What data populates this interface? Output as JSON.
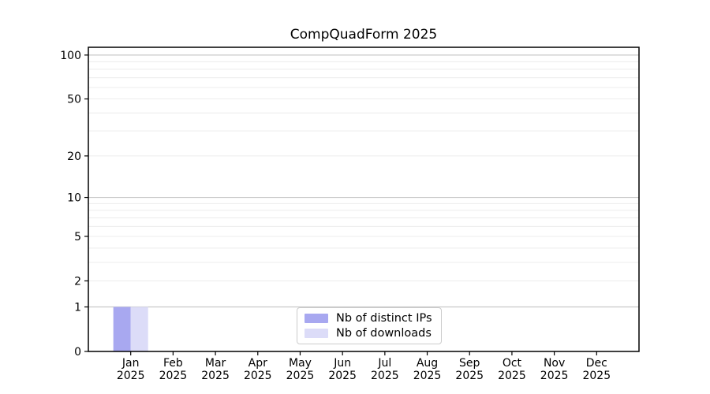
{
  "chart_data": {
    "type": "bar",
    "title": "CompQuadForm 2025",
    "yscale": "log1p",
    "ylim": [
      0,
      113
    ],
    "yticks": [
      0,
      1,
      2,
      5,
      10,
      20,
      50,
      100
    ],
    "major_gridlines": [
      1,
      10,
      100
    ],
    "minor_gridlines": [
      2,
      3,
      4,
      5,
      6,
      7,
      8,
      9,
      20,
      30,
      40,
      50,
      60,
      70,
      80,
      90
    ],
    "categories": [
      "Jan",
      "Feb",
      "Mar",
      "Apr",
      "May",
      "Jun",
      "Jul",
      "Aug",
      "Sep",
      "Oct",
      "Nov",
      "Dec"
    ],
    "x_tick_second_line": "2025",
    "series": [
      {
        "name": "Nb of distinct IPs",
        "color": "#a8a8f0",
        "values": [
          1,
          0,
          0,
          0,
          0,
          0,
          0,
          0,
          0,
          0,
          0,
          0
        ]
      },
      {
        "name": "Nb of downloads",
        "color": "#dcdcf8",
        "values": [
          1,
          0,
          0,
          0,
          0,
          0,
          0,
          0,
          0,
          0,
          0,
          0
        ]
      }
    ],
    "legend_position": "lower center",
    "grid": "horizontal-only",
    "colors": {
      "axis": "#000000",
      "text": "#000000",
      "grid_major": "#c9c9c9",
      "grid_minor": "#ececec",
      "legend_border": "#cccccc"
    }
  }
}
